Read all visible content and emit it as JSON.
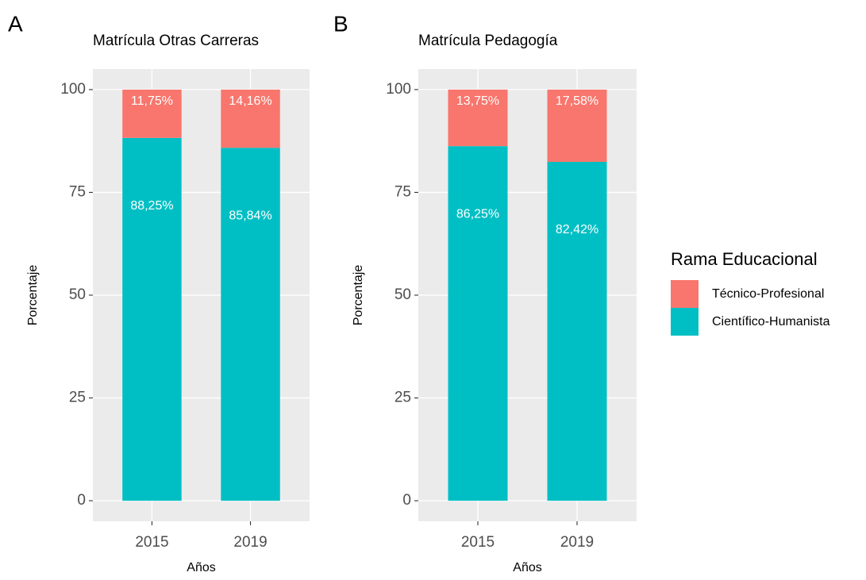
{
  "chart_data": [
    {
      "type": "stacked_bar",
      "tag": "A",
      "title": "Matrícula Otras Carreras",
      "x_label": "Años",
      "y_label": "Porcentaje",
      "categories": [
        "2015",
        "2019"
      ],
      "series": [
        {
          "name": "Científico-Humanista",
          "color": "#00BFC4",
          "values": [
            88.25,
            85.84
          ],
          "value_labels": [
            "88,25%",
            "85,84%"
          ]
        },
        {
          "name": "Técnico-Profesional",
          "color": "#F8766D",
          "values": [
            11.75,
            14.16
          ],
          "value_labels": [
            "11,75%",
            "14,16%"
          ]
        }
      ],
      "ylim": [
        -5,
        105
      ],
      "yticks": [
        0,
        25,
        50,
        75,
        100
      ],
      "grid": true,
      "legend_title": "Rama Educacional",
      "legend": "right"
    },
    {
      "type": "stacked_bar",
      "tag": "B",
      "title": "Matrícula Pedagogía",
      "x_label": "Años",
      "y_label": "Porcentaje",
      "categories": [
        "2015",
        "2019"
      ],
      "series": [
        {
          "name": "Científico-Humanista",
          "color": "#00BFC4",
          "values": [
            86.25,
            82.42
          ],
          "value_labels": [
            "86,25%",
            "82,42%"
          ]
        },
        {
          "name": "Técnico-Profesional",
          "color": "#F8766D",
          "values": [
            13.75,
            17.58
          ],
          "value_labels": [
            "13,75%",
            "17,58%"
          ]
        }
      ],
      "ylim": [
        -5,
        105
      ],
      "yticks": [
        0,
        25,
        50,
        75,
        100
      ],
      "grid": true
    }
  ]
}
